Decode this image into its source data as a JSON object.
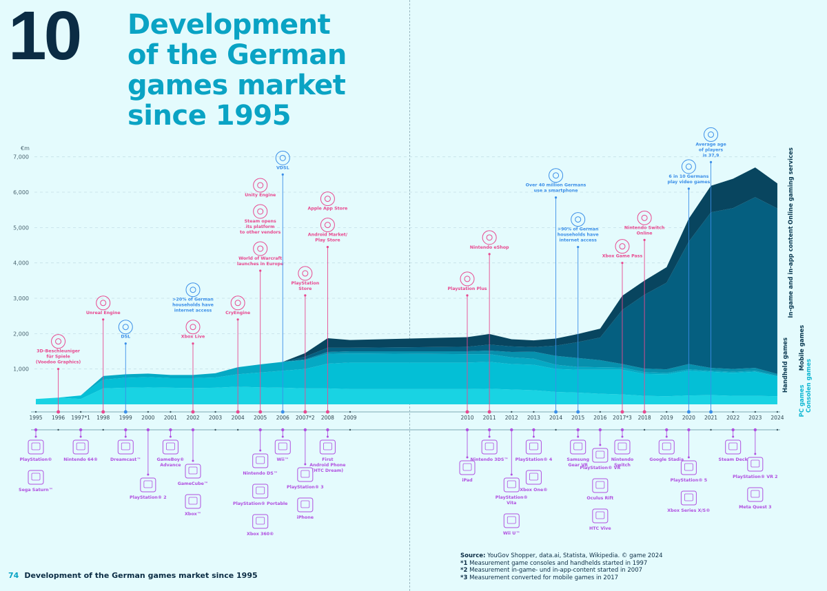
{
  "header": {
    "number": "10",
    "title_lines": [
      "Development",
      "of the German",
      "games market",
      "since 1995"
    ]
  },
  "footer": {
    "page": "74",
    "text": "Development of the German games market since 1995"
  },
  "source": {
    "label": "Source:",
    "text": "YouGov Shopper, data.ai, Statista, Wikipedia. © game 2024",
    "notes": [
      {
        "mark": "*1",
        "text": "Measurement game consoles and handhelds started in 1997"
      },
      {
        "mark": "*2",
        "text": "Measurement in-game- und in-app-content started in 2007"
      },
      {
        "mark": "*3",
        "text": "Measurement converted for mobile games in 2017"
      }
    ]
  },
  "colors": {
    "background": "#e4fbfd",
    "pink": "#e8488f",
    "blue": "#3a8ee8",
    "purple": "#b04fe0",
    "axis": "#9fc4cc"
  },
  "chart_data": {
    "type": "area",
    "stacked": true,
    "unit_label": "€m",
    "ylim": [
      0,
      7000
    ],
    "yticks": [
      1000,
      2000,
      3000,
      4000,
      5000,
      6000,
      7000
    ],
    "ytick_labels": [
      "1,000",
      "2,000",
      "3,000",
      "4,000",
      "5,000",
      "6,000",
      "7,000"
    ],
    "grid": true,
    "x": [
      1995,
      1996,
      1997,
      1998,
      1999,
      2000,
      2001,
      2002,
      2003,
      2004,
      2005,
      2006,
      2007,
      2008,
      2009,
      2010,
      2011,
      2012,
      2013,
      2014,
      2015,
      2016,
      2017,
      2018,
      2019,
      2020,
      2021,
      2022,
      2023,
      2024
    ],
    "x_labels": [
      "1995",
      "1996",
      "1997*1",
      "1998",
      "1999",
      "2000",
      "2001",
      "2002",
      "2003",
      "2004",
      "2005",
      "2006",
      "2007*2",
      "2008",
      "2009",
      "2010",
      "2011",
      "2012",
      "2013",
      "2014",
      "2015",
      "2016",
      "2017*3",
      "2018",
      "2019",
      "2020",
      "2021",
      "2022",
      "2023",
      "2024"
    ],
    "series": [
      {
        "name": "PC games",
        "color": "#19d3e3",
        "values": [
          150,
          190,
          150,
          450,
          470,
          480,
          470,
          460,
          470,
          500,
          480,
          470,
          450,
          450,
          430,
          430,
          440,
          420,
          400,
          350,
          330,
          300,
          280,
          240,
          230,
          250,
          260,
          240,
          240,
          230
        ]
      },
      {
        "name": "Consolen games",
        "color": "#04bfd6",
        "values": [
          0,
          0,
          100,
          250,
          280,
          290,
          270,
          280,
          290,
          350,
          420,
          480,
          550,
          700,
          750,
          750,
          760,
          720,
          720,
          650,
          650,
          680,
          700,
          620,
          620,
          700,
          660,
          650,
          680,
          560
        ]
      },
      {
        "name": "Handheld games",
        "color": "#05a9c4",
        "values": [
          0,
          0,
          0,
          100,
          100,
          100,
          90,
          90,
          120,
          200,
          230,
          250,
          250,
          280,
          260,
          240,
          220,
          190,
          170,
          120,
          80,
          70,
          60,
          50,
          40,
          40,
          30,
          30,
          30,
          20
        ]
      },
      {
        "name": "Mobile games",
        "color": "#0790ad",
        "values": [
          0,
          0,
          0,
          0,
          0,
          0,
          0,
          0,
          0,
          0,
          0,
          0,
          20,
          50,
          60,
          80,
          100,
          150,
          200,
          250,
          250,
          200,
          100,
          100,
          100,
          150,
          80,
          80,
          80,
          50
        ]
      },
      {
        "name": "In-game and in-app content",
        "color": "#055f80",
        "values": [
          0,
          0,
          0,
          0,
          0,
          0,
          0,
          0,
          0,
          0,
          0,
          0,
          80,
          120,
          100,
          130,
          170,
          160,
          130,
          290,
          450,
          640,
          1530,
          2090,
          2450,
          3460,
          4400,
          4550,
          4830,
          4680
        ]
      },
      {
        "name": "Online gaming services",
        "color": "#08455f",
        "values": [
          0,
          0,
          0,
          0,
          0,
          0,
          0,
          0,
          0,
          0,
          0,
          0,
          100,
          270,
          220,
          270,
          300,
          200,
          190,
          200,
          230,
          250,
          400,
          400,
          440,
          650,
          750,
          830,
          840,
          710
        ]
      }
    ],
    "milestones": [
      {
        "year": 1996,
        "value": 1000,
        "color": "pink",
        "items": [
          {
            "icon": "3d-cube-icon",
            "lines": [
              "3D-Beschleuniger",
              "für Spiele",
              "(Voodoo Graphics)"
            ]
          }
        ]
      },
      {
        "year": 1998,
        "value": 2400,
        "color": "pink",
        "items": [
          {
            "icon": "unreal-engine-icon",
            "lines": [
              "Unreal Engine"
            ]
          }
        ]
      },
      {
        "year": 1999,
        "value": 1720,
        "color": "blue",
        "items": [
          {
            "icon": "laptop-icon",
            "lines": [
              "DSL"
            ]
          }
        ]
      },
      {
        "year": 2002,
        "value": 1720,
        "color": "pink",
        "items": [
          {
            "icon": "xbox-live-icon",
            "lines": [
              "Xbox Live"
            ]
          },
          {
            "icon": "network-houses-icon",
            "color": "blue",
            "lines": [
              ">20% of German",
              "households have",
              "internet access"
            ]
          }
        ]
      },
      {
        "year": 2004,
        "value": 2400,
        "color": "pink",
        "items": [
          {
            "icon": "cryengine-eye-icon",
            "lines": [
              "CryEngine"
            ]
          }
        ]
      },
      {
        "year": 2005,
        "value": 3780,
        "color": "pink",
        "items": [
          {
            "icon": "world-of-warcraft-icon",
            "lines": [
              "World of Warcraft",
              "launches in Europe"
            ]
          },
          {
            "icon": "steam-icon",
            "lines": [
              "Steam opens",
              "its platform",
              "to other vendors"
            ]
          },
          {
            "icon": "unity-icon",
            "lines": [
              "Unity Engine"
            ]
          }
        ]
      },
      {
        "year": 2006,
        "value": 6500,
        "color": "blue",
        "items": [
          {
            "icon": "laptop-icon",
            "lines": [
              "VDSL"
            ]
          }
        ]
      },
      {
        "year": 2007,
        "value": 3080,
        "color": "pink",
        "items": [
          {
            "icon": "playstation-store-icon",
            "lines": [
              "PlayStation",
              "Store"
            ]
          }
        ]
      },
      {
        "year": 2008,
        "value": 4450,
        "color": "pink",
        "items": [
          {
            "icon": "android-icon",
            "lines": [
              "Android Market/",
              "Play Store"
            ]
          },
          {
            "icon": "app-store-icon",
            "lines": [
              "Apple App Store"
            ]
          }
        ]
      },
      {
        "year": 2010,
        "value": 3080,
        "color": "pink",
        "items": [
          {
            "icon": "playstation-plus-icon",
            "lines": [
              "Playstation Plus"
            ]
          }
        ]
      },
      {
        "year": 2011,
        "value": 4250,
        "color": "pink",
        "items": [
          {
            "icon": "nintendo-eshop-icon",
            "lines": [
              "Nintendo eShop"
            ]
          }
        ]
      },
      {
        "year": 2014,
        "value": 5850,
        "color": "blue",
        "items": [
          {
            "icon": "smartphone-icon",
            "lines": [
              "Over 40 million Germans",
              "use a smartphone"
            ]
          }
        ]
      },
      {
        "year": 2015,
        "value": 4450,
        "color": "blue",
        "items": [
          {
            "icon": "network-houses-icon",
            "lines": [
              ">90% of German",
              "households have",
              "internet access"
            ]
          }
        ]
      },
      {
        "year": 2017,
        "value": 4000,
        "color": "pink",
        "items": [
          {
            "icon": "xbox-game-pass-icon",
            "lines": [
              "Xbox Game Pass"
            ]
          }
        ]
      },
      {
        "year": 2018,
        "value": 4650,
        "color": "pink",
        "items": [
          {
            "icon": "nintendo-switch-icon",
            "lines": [
              "Nintendo Switch",
              "Online"
            ]
          }
        ]
      },
      {
        "year": 2020,
        "value": 6100,
        "color": "blue",
        "items": [
          {
            "icon": "germany-gamepad-icon",
            "lines": [
              "6 in 10 Germans",
              "play video games"
            ]
          }
        ]
      },
      {
        "year": 2021,
        "value": 6850,
        "color": "blue",
        "items": [
          {
            "icon": "players-icon",
            "lines": [
              "Average age",
              "of players",
              "is 37,9"
            ]
          }
        ]
      }
    ],
    "devices": [
      {
        "year": 1995,
        "items": [
          [
            "PlayStation®"
          ],
          [
            "Sega Saturn™"
          ]
        ]
      },
      {
        "year": 1997,
        "items": [
          [
            "Nintendo 64®"
          ]
        ]
      },
      {
        "year": 1999,
        "items": [
          [
            "Dreamcast™"
          ]
        ]
      },
      {
        "year": 2000,
        "items": [
          [
            "PlayStation® 2"
          ]
        ]
      },
      {
        "year": 2001,
        "items": [
          [
            "GameBoy®",
            "Advance"
          ]
        ]
      },
      {
        "year": 2002,
        "items": [
          [
            "GameCube™"
          ],
          [
            "Xbox™"
          ]
        ]
      },
      {
        "year": 2005,
        "items": [
          [
            "Nintendo DS™"
          ],
          [
            "PlayStation® Portable"
          ],
          [
            "Xbox 360®"
          ]
        ]
      },
      {
        "year": 2006,
        "items": [
          [
            "Wii™"
          ]
        ]
      },
      {
        "year": 2007,
        "items": [
          [
            "PlayStation® 3"
          ],
          [
            "iPhone"
          ]
        ]
      },
      {
        "year": 2008,
        "items": [
          [
            "First",
            "Android Phone",
            "(HTC Dream)"
          ]
        ]
      },
      {
        "year": 2010,
        "items": [
          [
            "iPad"
          ]
        ]
      },
      {
        "year": 2011,
        "items": [
          [
            "Nintendo 3DS™"
          ]
        ]
      },
      {
        "year": 2012,
        "items": [
          [
            "PlayStation®",
            "Vita"
          ],
          [
            "Wii U™"
          ]
        ]
      },
      {
        "year": 2013,
        "items": [
          [
            "PlayStation® 4"
          ],
          [
            "Xbox One®"
          ]
        ]
      },
      {
        "year": 2015,
        "items": [
          [
            "Samsung",
            "Gear VR"
          ]
        ]
      },
      {
        "year": 2016,
        "items": [
          [
            "PlayStation® VR"
          ],
          [
            "Oculus Rift"
          ],
          [
            "HTC Vive"
          ]
        ]
      },
      {
        "year": 2017,
        "items": [
          [
            "Nintendo",
            "Switch"
          ]
        ]
      },
      {
        "year": 2019,
        "items": [
          [
            "Google Stadia"
          ]
        ]
      },
      {
        "year": 2020,
        "items": [
          [
            "PlayStation® 5"
          ],
          [
            "Xbox Series X/S®"
          ]
        ]
      },
      {
        "year": 2022,
        "items": [
          [
            "Steam Deck"
          ]
        ]
      },
      {
        "year": 2023,
        "items": [
          [
            "PlayStation® VR 2"
          ],
          [
            "Meta Quest 3"
          ]
        ]
      }
    ]
  }
}
